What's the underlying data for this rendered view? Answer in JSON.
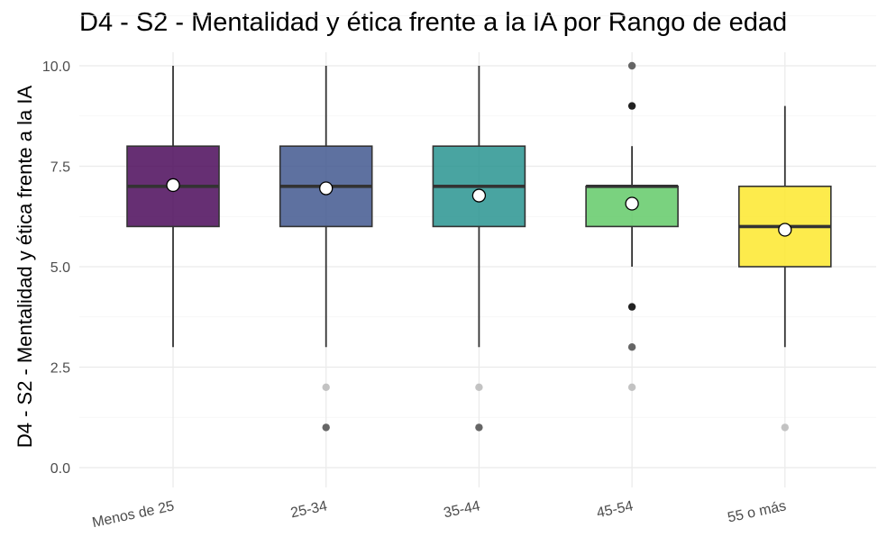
{
  "chart_data": {
    "type": "boxplot",
    "title": "D4 - S2 - Mentalidad y ética frente a la IA por Rango de edad",
    "xlabel": "",
    "ylabel": "D4 - S2 - Mentalidad y ética frente a la IA",
    "ylim": [
      0,
      10
    ],
    "y_ticks": [
      "0.0",
      "2.5",
      "5.0",
      "7.5",
      "10.0"
    ],
    "grid": true,
    "legend": "none",
    "categories": [
      "Menos de 25",
      "25-34",
      "35-44",
      "45-54",
      "55 o más"
    ],
    "colors": [
      "#440154",
      "#3b528b",
      "#21908c",
      "#5dc863",
      "#fde725"
    ],
    "boxes": [
      {
        "category": "Menos de 25",
        "whisker_low": 3,
        "q1": 6,
        "median": 7,
        "q3": 8,
        "whisker_high": 10,
        "mean": 7.03,
        "outliers": []
      },
      {
        "category": "25-34",
        "whisker_low": 3,
        "q1": 6,
        "median": 7,
        "q3": 8,
        "whisker_high": 10,
        "mean": 6.95,
        "outliers": [
          {
            "y": 2,
            "intensity": "light"
          },
          {
            "y": 1,
            "intensity": "dark"
          }
        ]
      },
      {
        "category": "35-44",
        "whisker_low": 3,
        "q1": 6,
        "median": 7,
        "q3": 8,
        "whisker_high": 10,
        "mean": 6.77,
        "outliers": [
          {
            "y": 2,
            "intensity": "light"
          },
          {
            "y": 1,
            "intensity": "dark"
          }
        ]
      },
      {
        "category": "45-54",
        "whisker_low": 5,
        "q1": 6,
        "median": 7,
        "q3": 7,
        "whisker_high": 8,
        "mean": 6.57,
        "outliers": [
          {
            "y": 10,
            "intensity": "dark"
          },
          {
            "y": 9,
            "intensity": "darkest"
          },
          {
            "y": 4,
            "intensity": "darkest"
          },
          {
            "y": 3,
            "intensity": "dark"
          },
          {
            "y": 2,
            "intensity": "light"
          }
        ]
      },
      {
        "category": "55 o más",
        "whisker_low": 3,
        "q1": 5,
        "median": 6,
        "q3": 7,
        "whisker_high": 9,
        "mean": 5.92,
        "outliers": [
          {
            "y": 1,
            "intensity": "light"
          }
        ]
      }
    ]
  }
}
